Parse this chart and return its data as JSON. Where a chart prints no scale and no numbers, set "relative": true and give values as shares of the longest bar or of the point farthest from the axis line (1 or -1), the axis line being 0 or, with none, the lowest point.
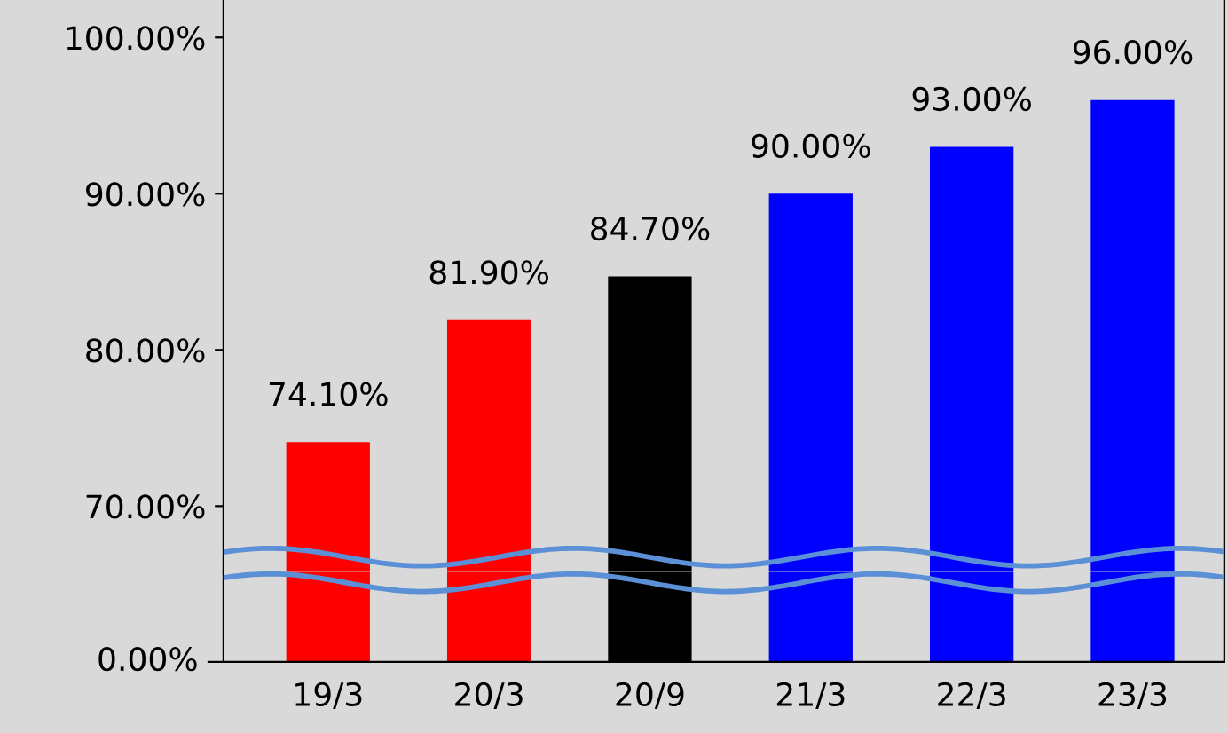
{
  "chart_data": [
    {
      "type": "bar",
      "categories": [
        null,
        null,
        null,
        null,
        null,
        null
      ],
      "values": [
        74.1,
        81.9,
        84.7,
        90.0,
        93.0,
        96.0
      ],
      "colors": [
        "#ff0000",
        "#ff0000",
        "#000000",
        "#0000ff",
        "#0000ff",
        "#0000ff"
      ],
      "value_labels": [
        "74.10%",
        "81.90%",
        "84.70%",
        "90.00%",
        "93.00%",
        "96.00%"
      ],
      "ylim": [
        65.8,
        102.4
      ],
      "yticks": [
        {
          "value": 70,
          "label": "70.00%"
        },
        {
          "value": 80,
          "label": "80.00%"
        },
        {
          "value": 90,
          "label": "90.00%"
        },
        {
          "value": 100,
          "label": "100.00%"
        }
      ],
      "tick_labels": "y"
    },
    {
      "type": "bar",
      "categories": [
        "19/3",
        "20/3",
        "20/9",
        "21/3",
        "22/3",
        "23/3"
      ],
      "values": [
        1,
        1,
        1,
        1,
        1,
        1
      ],
      "colors": [
        "#ff0000",
        "#ff0000",
        "#000000",
        "#0000ff",
        "#0000ff",
        "#0000ff"
      ],
      "relative": true,
      "annotations": [
        "0.00%"
      ],
      "tick_labels": "x"
    }
  ]
}
